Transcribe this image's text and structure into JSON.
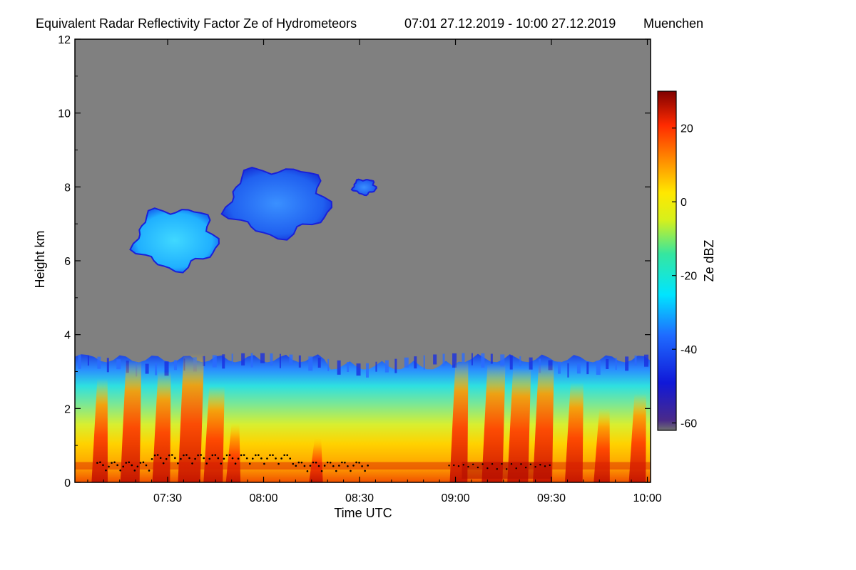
{
  "chart_data": {
    "type": "heatmap",
    "title": "Equivalent Radar Reflectivity Factor Ze of Hydrometeors",
    "time_range_label": "07:01 27.12.2019 - 10:00 27.12.2019",
    "location": "Muenchen",
    "xlabel": "Time UTC",
    "ylabel": "Height km",
    "xlim_minutes_utc": [
      421,
      601
    ],
    "ylim_km": [
      0,
      12
    ],
    "x_ticks": [
      {
        "label": "07:30",
        "minutes": 450
      },
      {
        "label": "08:00",
        "minutes": 480
      },
      {
        "label": "08:30",
        "minutes": 510
      },
      {
        "label": "09:00",
        "minutes": 540
      },
      {
        "label": "09:30",
        "minutes": 570
      },
      {
        "label": "10:00",
        "minutes": 600
      }
    ],
    "y_ticks": [
      {
        "label": "0",
        "value": 0
      },
      {
        "label": "2",
        "value": 2
      },
      {
        "label": "4",
        "value": 4
      },
      {
        "label": "6",
        "value": 6
      },
      {
        "label": "8",
        "value": 8
      },
      {
        "label": "10",
        "value": 10
      },
      {
        "label": "12",
        "value": 12
      }
    ],
    "colorbar": {
      "label": "Ze dBZ",
      "range_dbz": [
        -62,
        30
      ],
      "ticks": [
        {
          "label": "20",
          "value": 20
        },
        {
          "label": "0",
          "value": 0
        },
        {
          "label": "-20",
          "value": -20
        },
        {
          "label": "-40",
          "value": -40
        },
        {
          "label": "-60",
          "value": -60
        }
      ]
    },
    "no_signal_color": "#808080",
    "regions": [
      {
        "name": "lower-precipitation-layer",
        "time_min": [
          421,
          601
        ],
        "height_km": [
          0,
          3.5
        ],
        "dbz_range": [
          -45,
          25
        ]
      },
      {
        "name": "upper-cloud-1",
        "time_min": [
          440,
          465
        ],
        "height_km": [
          5.8,
          7.4
        ],
        "dbz_range": [
          -40,
          -25
        ]
      },
      {
        "name": "upper-cloud-2",
        "time_min": [
          469,
          500
        ],
        "height_km": [
          6.7,
          8.5
        ],
        "dbz_range": [
          -45,
          -30
        ]
      },
      {
        "name": "upper-cloud-3",
        "time_min": [
          508,
          515
        ],
        "height_km": [
          7.8,
          8.2
        ],
        "dbz_range": [
          -45,
          -30
        ]
      }
    ]
  }
}
